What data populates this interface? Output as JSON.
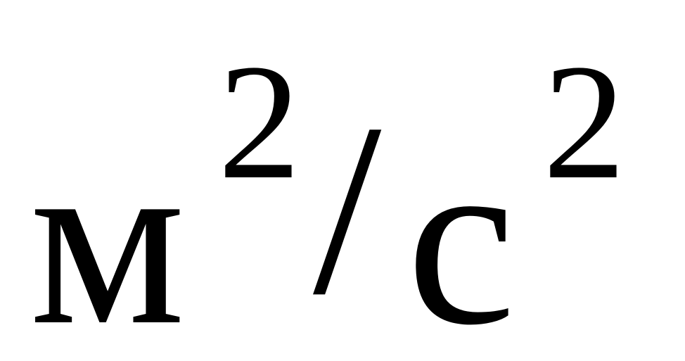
{
  "formula": {
    "base_meter": "м",
    "exp_meter": "2",
    "separator": "/",
    "base_second": "с",
    "exp_second": "2"
  }
}
